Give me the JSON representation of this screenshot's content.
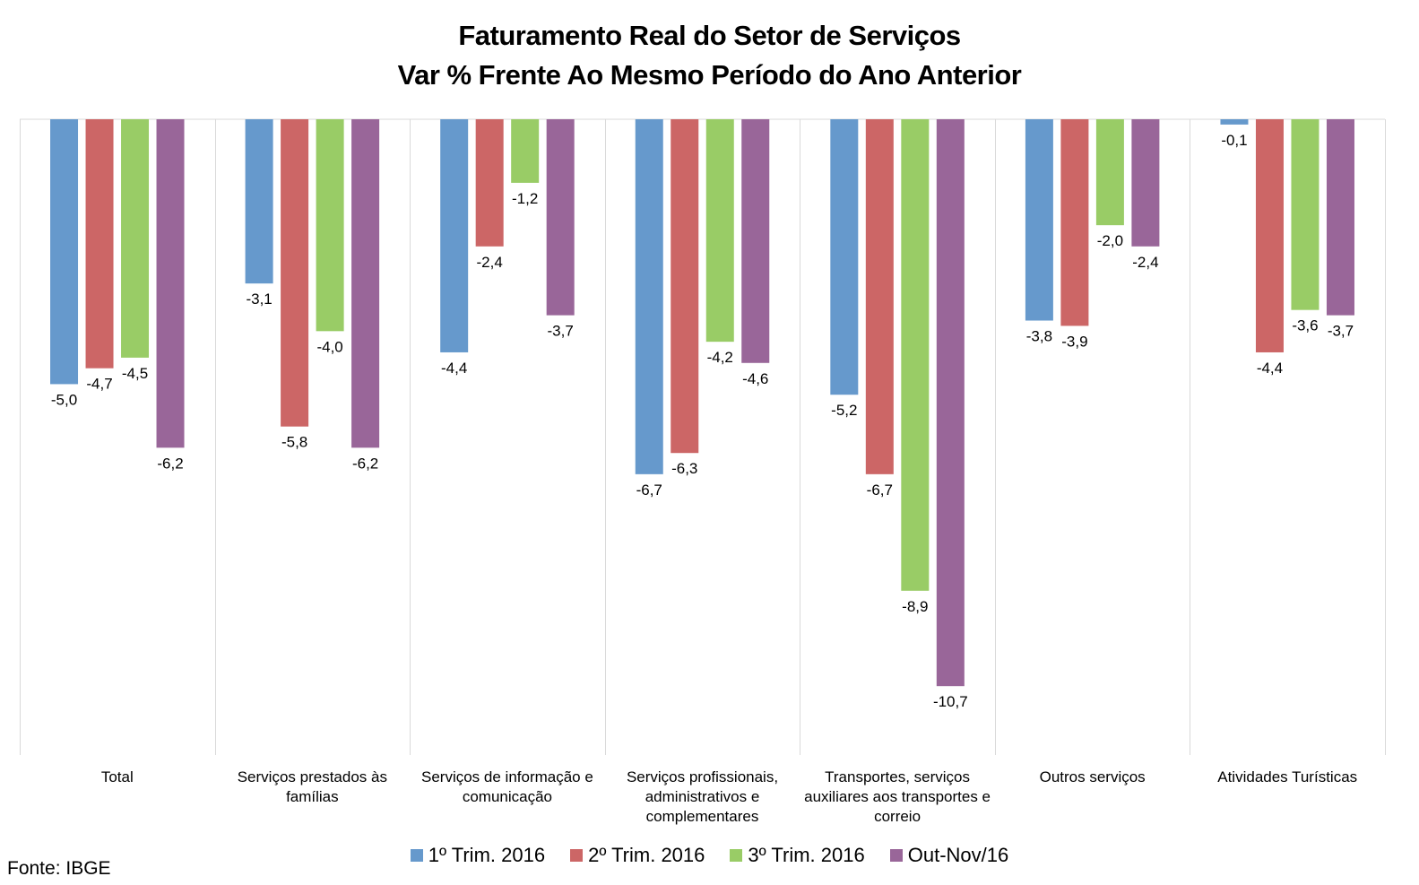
{
  "chart_data": {
    "type": "bar",
    "title": "Faturamento Real do Setor de Serviços",
    "subtitle": "Var % Frente Ao Mesmo Período do Ano Anterior",
    "categories": [
      [
        "Total"
      ],
      [
        "Serviços prestados às",
        "famílias"
      ],
      [
        "Serviços de informação e",
        "comunicação"
      ],
      [
        "Serviços profissionais,",
        "administrativos e",
        "complementares"
      ],
      [
        "Transportes, serviços",
        "auxiliares aos transportes e",
        "correio"
      ],
      [
        "Outros serviços"
      ],
      [
        "Atividades Turísticas"
      ]
    ],
    "series": [
      {
        "name": "1º Trim. 2016",
        "color": "#6699cc",
        "values": [
          -5.0,
          -3.1,
          -4.4,
          -6.7,
          -5.2,
          -3.8,
          -0.1
        ],
        "labels": [
          "-5,0",
          "-3,1",
          "-4,4",
          "-6,7",
          "-5,2",
          "-3,8",
          "-0,1"
        ]
      },
      {
        "name": "2º Trim. 2016",
        "color": "#cc6666",
        "values": [
          -4.7,
          -5.8,
          -2.4,
          -6.3,
          -6.7,
          -3.9,
          -4.4
        ],
        "labels": [
          "-4,7",
          "-5,8",
          "-2,4",
          "-6,3",
          "-6,7",
          "-3,9",
          "-4,4"
        ]
      },
      {
        "name": "3º Trim. 2016",
        "color": "#99cc66",
        "values": [
          -4.5,
          -4.0,
          -1.2,
          -4.2,
          -8.9,
          -2.0,
          -3.6
        ],
        "labels": [
          "-4,5",
          "-4,0",
          "-1,2",
          "-4,2",
          "-8,9",
          "-2,0",
          "-3,6"
        ]
      },
      {
        "name": "Out-Nov/16",
        "color": "#996699",
        "values": [
          -6.2,
          -6.2,
          -3.7,
          -4.6,
          -10.7,
          -2.4,
          -3.7
        ],
        "labels": [
          "-6,2",
          "-6,2",
          "-3,7",
          "-4,6",
          "-10,7",
          "-2,4",
          "-3,7"
        ]
      }
    ],
    "ylim": [
      -12,
      0
    ],
    "grid": false,
    "legend": "bottom"
  },
  "source": "Fonte: IBGE"
}
